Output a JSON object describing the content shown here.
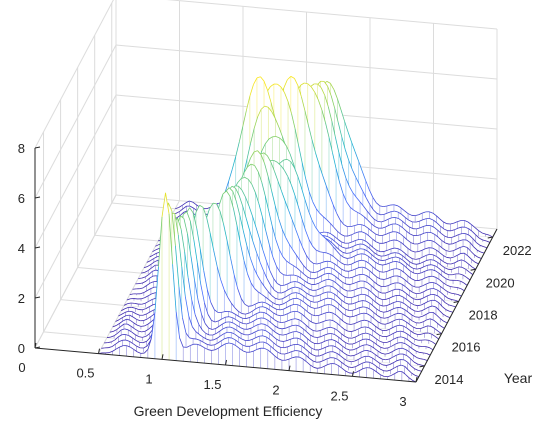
{
  "chart_data": {
    "type": "surface",
    "title": "",
    "xlabel": "Green Development Efficiency",
    "ylabel": "Year",
    "zlabel": "",
    "xlim": [
      0,
      3
    ],
    "ylim": [
      2013,
      2022.5
    ],
    "zlim": [
      0,
      8
    ],
    "x_ticks": [
      "0",
      "0.5",
      "1",
      "1.5",
      "2",
      "2.5",
      "3"
    ],
    "y_ticks": [
      "2014",
      "2016",
      "2018",
      "2020",
      "2022"
    ],
    "z_ticks": [
      "0",
      "2",
      "4",
      "6",
      "8"
    ],
    "grid": true,
    "colormap": "parula",
    "x_range": [
      0.5,
      3.0
    ],
    "y": [
      2013,
      2014,
      2015,
      2016,
      2017,
      2018,
      2019,
      2020,
      2021,
      2022
    ],
    "peaks": [
      {
        "year": 2013,
        "x": 1.03,
        "density": 6.2
      },
      {
        "year": 2014,
        "x": 1.05,
        "density": 4.8
      },
      {
        "year": 2015,
        "x": 1.08,
        "density": 4.3
      },
      {
        "year": 2016,
        "x": 1.3,
        "density": 4.4
      },
      {
        "year": 2017,
        "x": 1.33,
        "density": 4.2
      },
      {
        "year": 2018,
        "x": 1.4,
        "density": 4.8
      },
      {
        "year": 2019,
        "x": 1.55,
        "density": 4.0
      },
      {
        "year": 2020,
        "x": 1.3,
        "density": 6.4
      },
      {
        "year": 2021,
        "x": 1.6,
        "density": 5.9
      },
      {
        "year": 2022,
        "x": 1.7,
        "density": 5.1
      }
    ]
  }
}
